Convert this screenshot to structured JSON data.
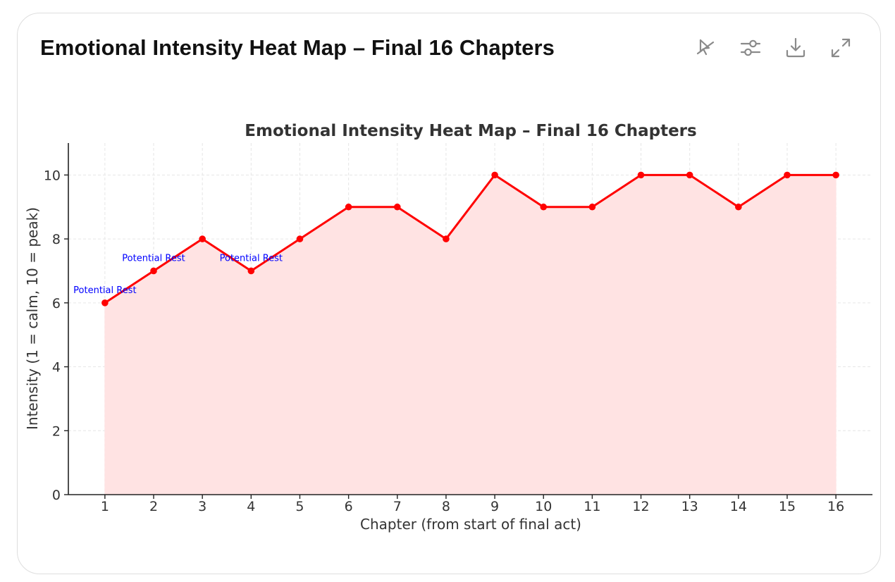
{
  "card": {
    "title": "Emotional Intensity Heat Map – Final 16 Chapters"
  },
  "toolbar": {
    "buttons": [
      {
        "name": "toggle-interactive-button",
        "icon": "cursor-off-icon"
      },
      {
        "name": "chart-settings-button",
        "icon": "sliders-icon"
      },
      {
        "name": "download-button",
        "icon": "download-icon"
      },
      {
        "name": "expand-button",
        "icon": "expand-icon"
      }
    ]
  },
  "chart_data": {
    "type": "area",
    "title": "Emotional Intensity Heat Map – Final 16 Chapters",
    "xlabel": "Chapter (from start of final act)",
    "ylabel": "Intensity (1 = calm, 10 = peak)",
    "x": [
      1,
      2,
      3,
      4,
      5,
      6,
      7,
      8,
      9,
      10,
      11,
      12,
      13,
      14,
      15,
      16
    ],
    "xticks": [
      "1",
      "2",
      "3",
      "4",
      "5",
      "6",
      "7",
      "8",
      "9",
      "10",
      "11",
      "12",
      "13",
      "14",
      "15",
      "16"
    ],
    "yticks": [
      "0",
      "2",
      "4",
      "6",
      "8",
      "10"
    ],
    "ylim": [
      0,
      11
    ],
    "xlim": [
      0.25,
      16.75
    ],
    "grid": true,
    "series": [
      {
        "values": [
          6,
          7,
          8,
          7,
          8,
          9,
          9,
          8,
          10,
          9,
          9,
          10,
          10,
          9,
          10,
          10
        ],
        "color": "#ff0000",
        "fill": "#ffe3e3"
      }
    ],
    "annotations": [
      {
        "x": 1,
        "y": 6,
        "text": "Potential Rest"
      },
      {
        "x": 2,
        "y": 7,
        "text": "Potential Rest"
      },
      {
        "x": 4,
        "y": 7,
        "text": "Potential Rest"
      }
    ],
    "annotation_color": "#0000ff"
  }
}
